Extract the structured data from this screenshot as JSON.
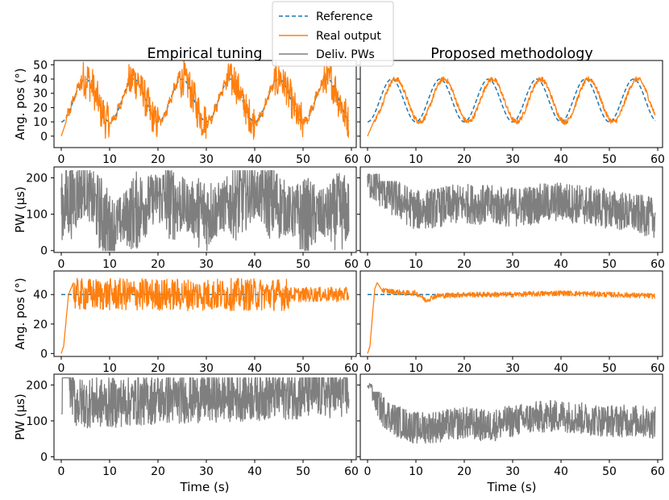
{
  "chart_data": {
    "type": "line",
    "legend": {
      "placement": "top-center",
      "entries": [
        {
          "label": "Reference",
          "color": "#1f77b4",
          "style": "dashed"
        },
        {
          "label": "Real output",
          "color": "#ff7f0e",
          "style": "solid"
        },
        {
          "label": "Deliv. PWs",
          "color": "#7f7f7f",
          "style": "solid"
        }
      ]
    },
    "column_titles": [
      "Empirical tuning",
      "Proposed methodology"
    ],
    "xlabel": "Time (s)",
    "xlim": [
      -1.5,
      61
    ],
    "xticks": [
      0,
      10,
      20,
      30,
      40,
      50,
      60
    ],
    "rows": [
      {
        "ylabel": "Ang. pos (°)",
        "ylim": [
          -8,
          53
        ],
        "yticks": [
          0,
          10,
          20,
          30,
          40,
          50
        ]
      },
      {
        "ylabel": "PW (μs)",
        "ylim": [
          -5,
          230
        ],
        "yticks": [
          0,
          100,
          200
        ]
      },
      {
        "ylabel": "Ang. pos (°)",
        "ylim": [
          -2,
          56
        ],
        "yticks": [
          0,
          20,
          40
        ]
      },
      {
        "ylabel": "PW (μs)",
        "ylim": [
          -8,
          230
        ],
        "yticks": [
          0,
          100,
          200
        ]
      }
    ],
    "panels": [
      {
        "id": "sine-empirical",
        "row": 0,
        "col": 0,
        "series": [
          {
            "name": "Reference",
            "desc": "sinusoid centered at 25°, amplitude 15°, period 10 s",
            "t": [
              0,
              2.5,
              5,
              7.5,
              10,
              12.5,
              15,
              17.5,
              20,
              22.5,
              25,
              27.5,
              30,
              32.5,
              35,
              37.5,
              40,
              42.5,
              45,
              47.5,
              50,
              52.5,
              55,
              57.5,
              59.5
            ],
            "values": [
              10,
              25,
              40,
              25,
              10,
              25,
              40,
              25,
              10,
              25,
              40,
              25,
              10,
              25,
              40,
              25,
              10,
              25,
              40,
              25,
              10,
              25,
              40,
              25,
              12
            ]
          },
          {
            "name": "Real output",
            "desc": "follows reference with heavy oscillation in descending phases, dips to about -5°, peaks up to about 48°",
            "t": [
              0,
              2,
              4,
              5,
              6,
              8,
              10,
              12,
              15,
              18,
              20,
              22,
              25,
              28,
              30,
              32,
              35,
              38,
              40,
              42,
              45,
              48,
              50,
              52,
              55,
              58,
              59.5
            ],
            "values": [
              0,
              20,
              38,
              41,
              40,
              25,
              5,
              25,
              44,
              20,
              2,
              25,
              45,
              22,
              3,
              25,
              46,
              20,
              2,
              25,
              47,
              18,
              3,
              25,
              48,
              15,
              10
            ]
          },
          {
            "name": "Deliv. PWs",
            "desc": "shown only in PW panels"
          }
        ]
      },
      {
        "id": "sine-proposed",
        "row": 0,
        "col": 1,
        "series": [
          {
            "name": "Reference",
            "desc": "sinusoid centered at 25°, amplitude 15°, period 10 s",
            "t": [
              0,
              2.5,
              5,
              7.5,
              10,
              12.5,
              15,
              17.5,
              20,
              22.5,
              25,
              27.5,
              30,
              32.5,
              35,
              37.5,
              40,
              42.5,
              45,
              47.5,
              50,
              52.5,
              55,
              57.5,
              59.5
            ],
            "values": [
              10,
              25,
              40,
              25,
              10,
              25,
              40,
              25,
              10,
              25,
              40,
              25,
              10,
              25,
              40,
              25,
              10,
              25,
              40,
              25,
              10,
              25,
              40,
              25,
              12
            ]
          },
          {
            "name": "Real output",
            "desc": "smooth tracking, slight lag, small noise",
            "t": [
              0,
              1,
              3,
              5,
              7,
              9,
              10,
              12,
              14,
              15,
              17,
              19,
              20,
              22,
              24,
              25,
              27,
              29,
              30,
              32,
              34,
              35,
              37,
              39,
              40,
              42,
              44,
              45,
              47,
              49,
              50,
              52,
              54,
              55,
              57,
              59.5
            ],
            "values": [
              0,
              12,
              33,
              40,
              32,
              13,
              9,
              18,
              33,
              37,
              31,
              13,
              10,
              16,
              33,
              37,
              31,
              13,
              11,
              17,
              35,
              38,
              32,
              14,
              9,
              16,
              35,
              38,
              32,
              13,
              11,
              16,
              34,
              38,
              32,
              15
            ]
          }
        ]
      },
      {
        "id": "pw-sine-empirical",
        "row": 1,
        "col": 0,
        "series": [
          {
            "name": "Deliv. PWs",
            "desc": "dense oscillation saturating between 0 and 220 μs",
            "t": [
              0,
              5,
              10,
              20,
              30,
              40,
              50,
              59.5
            ],
            "values": [
              120,
              170,
              60,
              150,
              100,
              160,
              90,
              110
            ]
          }
        ]
      },
      {
        "id": "pw-sine-proposed",
        "row": 1,
        "col": 1,
        "series": [
          {
            "name": "Deliv. PWs",
            "desc": "dense oscillation mostly within 50–210 μs",
            "t": [
              0,
              5,
              10,
              20,
              30,
              40,
              50,
              59.5
            ],
            "values": [
              200,
              150,
              110,
              130,
              120,
              135,
              115,
              90
            ]
          }
        ]
      },
      {
        "id": "step-empirical",
        "row": 2,
        "col": 0,
        "series": [
          {
            "name": "Reference",
            "desc": "constant 40°",
            "t": [
              0,
              59.5
            ],
            "values": [
              40,
              40
            ]
          },
          {
            "name": "Real output",
            "desc": "rises from 0 to overshoot ~48°, then large sustained oscillations ~28–52° until ~47 s, smaller afterwards",
            "t": [
              0,
              0.5,
              1.5,
              2.5,
              4,
              10,
              20,
              30,
              40,
              47,
              48,
              55,
              59.5
            ],
            "values": [
              0,
              5,
              40,
              48,
              38,
              40,
              40,
              40,
              40,
              40,
              40,
              40,
              35
            ]
          }
        ]
      },
      {
        "id": "step-proposed",
        "row": 2,
        "col": 1,
        "series": [
          {
            "name": "Reference",
            "desc": "constant 40°",
            "t": [
              0,
              59.5
            ],
            "values": [
              40,
              40
            ]
          },
          {
            "name": "Real output",
            "desc": "rises to ~48° at ~2 s, settles near 40° with small noise; dip at ~12 s",
            "t": [
              0,
              0.5,
              1,
              1.5,
              2,
              3,
              5,
              8,
              10,
              11,
              12,
              14,
              20,
              30,
              40,
              50,
              59.5
            ],
            "values": [
              0,
              5,
              25,
              44,
              48,
              43,
              42,
              41,
              41,
              39,
              36,
              39,
              40,
              40,
              41,
              40,
              39
            ]
          }
        ]
      },
      {
        "id": "pw-step-empirical",
        "row": 3,
        "col": 0,
        "series": [
          {
            "name": "Deliv. PWs",
            "desc": "starts 120, saturates 220 briefly, then oscillates ~80–220 μs",
            "t": [
              0,
              0.3,
              1.5,
              3,
              10,
              20,
              30,
              40,
              50,
              59.5
            ],
            "values": [
              120,
              220,
              220,
              150,
              150,
              160,
              165,
              170,
              175,
              180
            ]
          }
        ]
      },
      {
        "id": "pw-step-proposed",
        "row": 3,
        "col": 1,
        "series": [
          {
            "name": "Deliv. PWs",
            "desc": "starts ~200, drops to noisy ~40–150 μs band with slow variation",
            "t": [
              0,
              1,
              3,
              6,
              10,
              15,
              20,
              25,
              30,
              35,
              40,
              45,
              50,
              55,
              59.5
            ],
            "values": [
              200,
              190,
              130,
              100,
              80,
              85,
              95,
              85,
              100,
              110,
              115,
              105,
              100,
              100,
              95
            ]
          }
        ]
      }
    ]
  }
}
